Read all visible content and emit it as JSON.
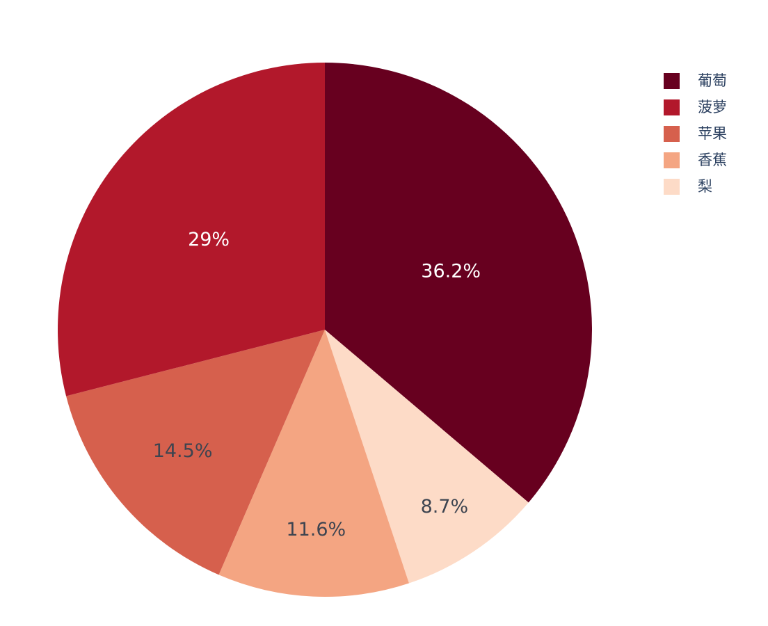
{
  "chart_data": {
    "type": "pie",
    "title": "",
    "labels": [
      "葡萄",
      "菠萝",
      "苹果",
      "香蕉",
      "梨"
    ],
    "values": [
      36.2,
      29,
      14.5,
      11.6,
      8.7
    ],
    "slice_labels": [
      "36.2%",
      "29%",
      "14.5%",
      "11.6%",
      "8.7%"
    ],
    "colors": [
      "#67001f",
      "#b2182b",
      "#d6604d",
      "#f4a582",
      "#fddbc7"
    ],
    "slice_label_colors": [
      "#ffffff",
      "#ffffff",
      "#3d4450",
      "#3d4450",
      "#3d4450"
    ],
    "visual_order_clockwise_from_top": [
      0,
      4,
      3,
      2,
      1
    ],
    "start_angle_deg": 0,
    "legend_position": "top-right",
    "legend_text_color": "#2a3f5f",
    "background": "#ffffff"
  }
}
